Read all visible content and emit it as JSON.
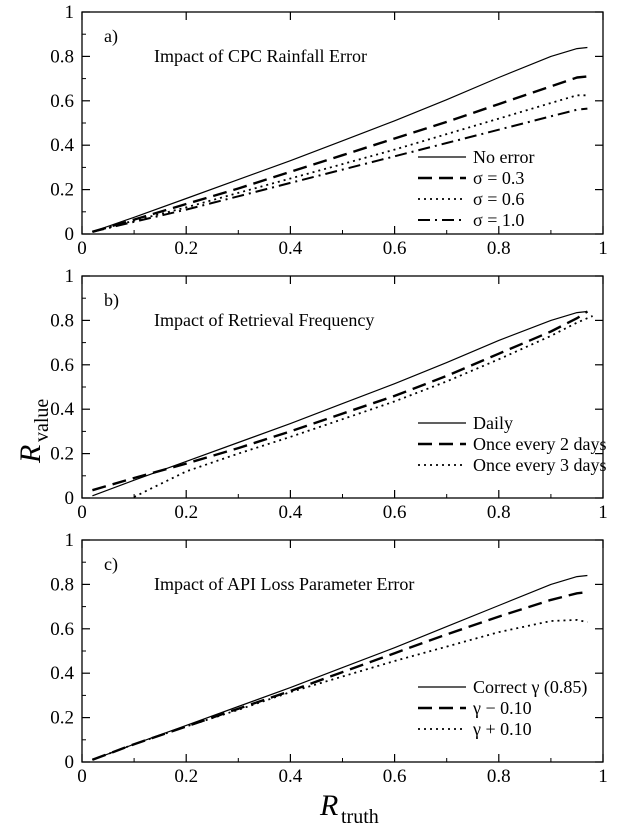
{
  "figure": {
    "ylabel_main": "R",
    "ylabel_sub": "value",
    "xlabel_main": "R",
    "xlabel_sub": "truth"
  },
  "chart_data": [
    {
      "type": "line",
      "panel_label": "a)",
      "title": "Impact of CPC Rainfall Error",
      "xlim": [
        0,
        1
      ],
      "ylim": [
        0,
        1
      ],
      "xticks": [
        0,
        0.2,
        0.4,
        0.6,
        0.8,
        1
      ],
      "xtick_labels": [
        "0",
        "0.2",
        "0.4",
        "0.6",
        "0.8",
        "1"
      ],
      "yticks": [
        0,
        0.2,
        0.4,
        0.6,
        0.8,
        1
      ],
      "ytick_labels": [
        "0",
        "0.2",
        "0.4",
        "0.6",
        "0.8",
        "1"
      ],
      "grid": false,
      "legend_position": "bottom-right",
      "series": [
        {
          "name": "No error",
          "style": "solid",
          "x": [
            0.02,
            0.1,
            0.2,
            0.3,
            0.4,
            0.5,
            0.6,
            0.7,
            0.8,
            0.9,
            0.95,
            0.97
          ],
          "y": [
            0.01,
            0.075,
            0.16,
            0.245,
            0.33,
            0.42,
            0.51,
            0.605,
            0.705,
            0.8,
            0.835,
            0.84
          ]
        },
        {
          "name": "σ = 0.3",
          "style": "dashed",
          "x": [
            0.02,
            0.1,
            0.2,
            0.3,
            0.4,
            0.5,
            0.6,
            0.7,
            0.8,
            0.9,
            0.95,
            0.97
          ],
          "y": [
            0.01,
            0.065,
            0.135,
            0.205,
            0.28,
            0.355,
            0.43,
            0.505,
            0.585,
            0.665,
            0.705,
            0.71
          ]
        },
        {
          "name": "σ = 0.6",
          "style": "dotted",
          "x": [
            0.02,
            0.1,
            0.2,
            0.3,
            0.4,
            0.5,
            0.6,
            0.7,
            0.8,
            0.9,
            0.95,
            0.97
          ],
          "y": [
            0.01,
            0.06,
            0.12,
            0.185,
            0.25,
            0.315,
            0.38,
            0.45,
            0.52,
            0.59,
            0.625,
            0.625
          ]
        },
        {
          "name": "σ = 1.0",
          "style": "dashdot",
          "x": [
            0.02,
            0.1,
            0.2,
            0.3,
            0.4,
            0.5,
            0.6,
            0.7,
            0.8,
            0.9,
            0.95,
            0.97
          ],
          "y": [
            0.01,
            0.055,
            0.11,
            0.17,
            0.23,
            0.29,
            0.35,
            0.41,
            0.47,
            0.53,
            0.56,
            0.565
          ]
        }
      ]
    },
    {
      "type": "line",
      "panel_label": "b)",
      "title": "Impact of Retrieval Frequency",
      "xlim": [
        0,
        1
      ],
      "ylim": [
        0,
        1
      ],
      "xticks": [
        0,
        0.2,
        0.4,
        0.6,
        0.8,
        1
      ],
      "xtick_labels": [
        "0",
        "0.2",
        "0.4",
        "0.6",
        "0.8",
        "1"
      ],
      "yticks": [
        0,
        0.2,
        0.4,
        0.6,
        0.8,
        1
      ],
      "ytick_labels": [
        "0",
        "0.2",
        "0.4",
        "0.6",
        "0.8",
        "1"
      ],
      "grid": false,
      "legend_position": "bottom-right",
      "series": [
        {
          "name": "Daily",
          "style": "solid",
          "x": [
            0.02,
            0.1,
            0.2,
            0.3,
            0.4,
            0.5,
            0.6,
            0.7,
            0.8,
            0.9,
            0.95,
            0.97
          ],
          "y": [
            0.01,
            0.08,
            0.165,
            0.25,
            0.335,
            0.425,
            0.515,
            0.61,
            0.71,
            0.8,
            0.835,
            0.84
          ]
        },
        {
          "name": "Once every 2 days",
          "style": "dashed",
          "x": [
            0.02,
            0.1,
            0.2,
            0.3,
            0.4,
            0.5,
            0.6,
            0.7,
            0.8,
            0.9,
            0.95,
            0.97
          ],
          "y": [
            0.035,
            0.09,
            0.155,
            0.225,
            0.3,
            0.38,
            0.46,
            0.55,
            0.65,
            0.75,
            0.81,
            0.84
          ]
        },
        {
          "name": "Once every 3 days",
          "style": "dotted",
          "x": [
            0.1,
            0.2,
            0.3,
            0.4,
            0.5,
            0.6,
            0.7,
            0.8,
            0.9,
            0.95,
            0.98
          ],
          "y": [
            0.005,
            0.12,
            0.2,
            0.275,
            0.355,
            0.435,
            0.525,
            0.625,
            0.73,
            0.79,
            0.82
          ]
        }
      ]
    },
    {
      "type": "line",
      "panel_label": "c)",
      "title": "Impact of API Loss Parameter Error",
      "xlim": [
        0,
        1
      ],
      "ylim": [
        0,
        1
      ],
      "xticks": [
        0,
        0.2,
        0.4,
        0.6,
        0.8,
        1
      ],
      "xtick_labels": [
        "0",
        "0.2",
        "0.4",
        "0.6",
        "0.8",
        "1"
      ],
      "yticks": [
        0,
        0.2,
        0.4,
        0.6,
        0.8,
        1
      ],
      "ytick_labels": [
        "0",
        "0.2",
        "0.4",
        "0.6",
        "0.8",
        "1"
      ],
      "grid": false,
      "legend_position": "bottom-right",
      "series": [
        {
          "name": "Correct γ (0.85)",
          "style": "solid",
          "x": [
            0.02,
            0.1,
            0.2,
            0.3,
            0.4,
            0.5,
            0.6,
            0.7,
            0.8,
            0.9,
            0.95,
            0.97
          ],
          "y": [
            0.01,
            0.08,
            0.165,
            0.25,
            0.335,
            0.425,
            0.515,
            0.61,
            0.705,
            0.8,
            0.835,
            0.84
          ]
        },
        {
          "name": "γ − 0.10",
          "style": "dashed",
          "x": [
            0.02,
            0.1,
            0.2,
            0.3,
            0.4,
            0.5,
            0.6,
            0.7,
            0.8,
            0.9,
            0.95,
            0.97
          ],
          "y": [
            0.01,
            0.08,
            0.16,
            0.24,
            0.32,
            0.405,
            0.49,
            0.575,
            0.655,
            0.73,
            0.76,
            0.765
          ]
        },
        {
          "name": "γ + 0.10",
          "style": "dotted",
          "x": [
            0.02,
            0.1,
            0.2,
            0.3,
            0.4,
            0.5,
            0.6,
            0.7,
            0.8,
            0.9,
            0.95,
            0.97
          ],
          "y": [
            0.01,
            0.08,
            0.16,
            0.235,
            0.315,
            0.385,
            0.455,
            0.52,
            0.585,
            0.635,
            0.64,
            0.63
          ]
        }
      ]
    }
  ]
}
